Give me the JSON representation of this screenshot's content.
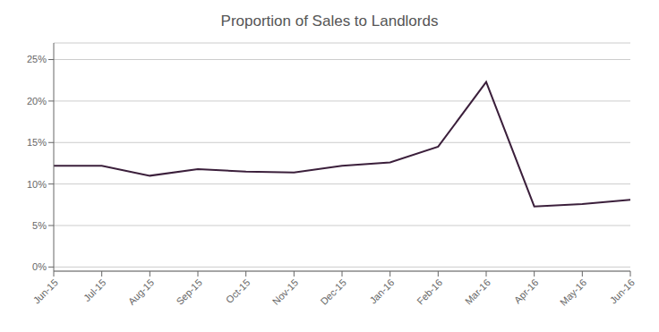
{
  "chart_data": {
    "type": "line",
    "title": "Proportion of Sales to Landlords",
    "categories": [
      "Jun-15",
      "Jul-15",
      "Aug-15",
      "Sep-15",
      "Oct-15",
      "Nov-15",
      "Dec-15",
      "Jan-16",
      "Feb-16",
      "Mar-16",
      "Apr-16",
      "May-16",
      "Jun-16"
    ],
    "values": [
      0.122,
      0.122,
      0.11,
      0.118,
      0.115,
      0.114,
      0.122,
      0.126,
      0.145,
      0.223,
      0.073,
      0.076,
      0.081
    ],
    "color": "#3b1f3b",
    "ylim": [
      -0.005,
      0.27
    ],
    "yticks": [
      {
        "value": 0.0,
        "label": "0%"
      },
      {
        "value": 0.05,
        "label": "5%"
      },
      {
        "value": 0.1,
        "label": "10%"
      },
      {
        "value": 0.15,
        "label": "15%"
      },
      {
        "value": 0.2,
        "label": "20%"
      },
      {
        "value": 0.25,
        "label": "25%"
      }
    ],
    "grid": true
  }
}
